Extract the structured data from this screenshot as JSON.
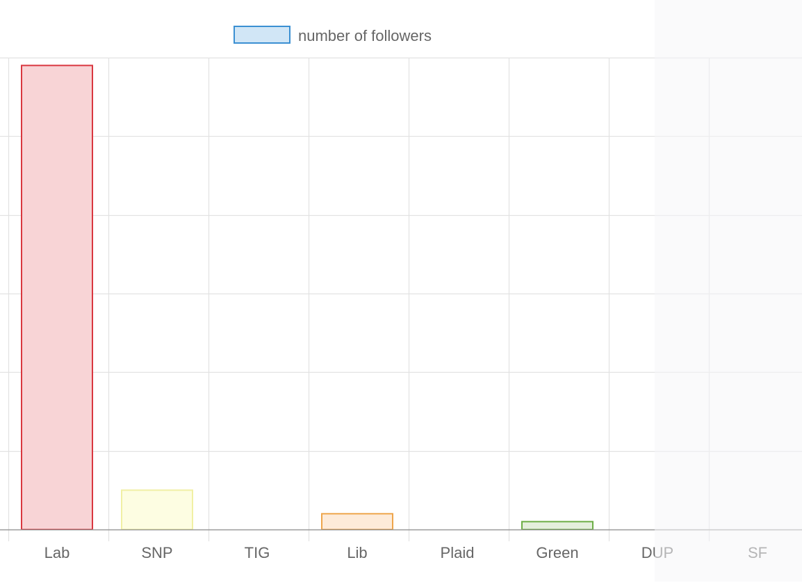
{
  "chart_data": {
    "type": "bar",
    "title": "",
    "xlabel": "",
    "ylabel": "",
    "categories": [
      "Lab",
      "SNP",
      "TIG",
      "Lib",
      "Plaid",
      "Green",
      "DUP",
      "SF"
    ],
    "series": [
      {
        "name": "number of followers",
        "values": [
          5.9,
          0.5,
          0,
          0.2,
          0,
          0.1,
          0,
          0
        ],
        "colors": {
          "fill": [
            "#f8d4d6",
            "#fdfde2",
            "#e6e6e6",
            "#fdebd9",
            "#e6e6e6",
            "#e4efdc",
            "#e6e6e6",
            "#e6e6e6"
          ],
          "stroke": [
            "#d9373f",
            "#f1f0a4",
            "#bbbbbb",
            "#eea54a",
            "#bbbbbb",
            "#6cae45",
            "#bbbbbb",
            "#bbbbbb"
          ]
        }
      }
    ],
    "ylim": [
      0,
      6
    ],
    "grid": true,
    "legend": {
      "position": "top",
      "label": "number of followers",
      "fill": "#d1e6f6",
      "stroke": "#3a8fd2"
    },
    "axis_color": "#999999",
    "grid_color": "#e2e2e2",
    "tick_label_color": "#666666"
  }
}
